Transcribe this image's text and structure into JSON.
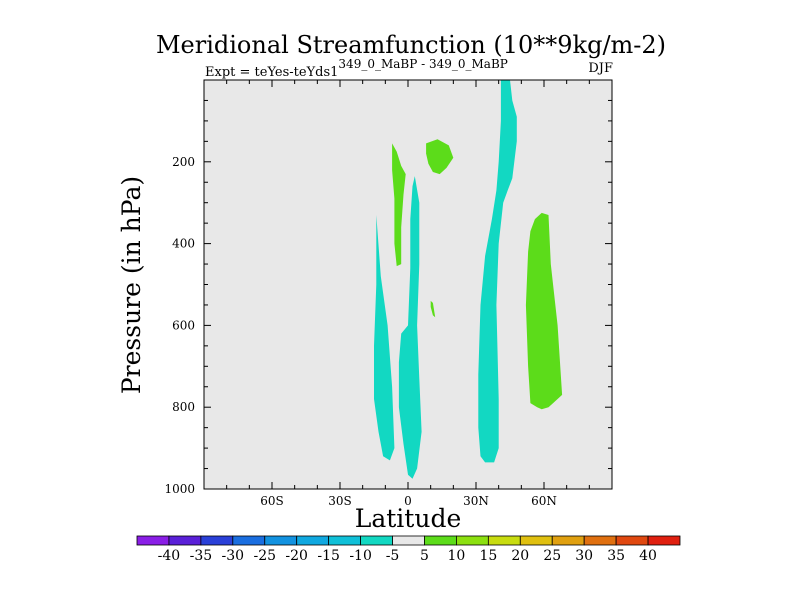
{
  "chart_data": {
    "type": "heatmap",
    "title": "Meridional Streamfunction (10**9kg/m-2)",
    "subtitle_left": "Expt = teYes-teYds1",
    "subtitle_left_superscript": "349_0_MaBP - 349_0_MaBP",
    "subtitle_right": "DJF",
    "xlabel": "Latitude",
    "ylabel": "Pressure (in hPa)",
    "xlim": [
      -90,
      90
    ],
    "ylim": [
      1000,
      0
    ],
    "xticks": [
      {
        "value": -60,
        "label": "60S"
      },
      {
        "value": -30,
        "label": "30S"
      },
      {
        "value": 0,
        "label": "0"
      },
      {
        "value": 30,
        "label": "30N"
      },
      {
        "value": 60,
        "label": "60N"
      }
    ],
    "yticks": [
      {
        "value": 200,
        "label": "200"
      },
      {
        "value": 400,
        "label": "400"
      },
      {
        "value": 600,
        "label": "600"
      },
      {
        "value": 800,
        "label": "800"
      },
      {
        "value": 1000,
        "label": "1000"
      }
    ],
    "background_color": "#e8e8e8",
    "colorbar": {
      "levels": [
        "-40",
        "-35",
        "-30",
        "-25",
        "-20",
        "-15",
        "-10",
        "-5",
        "5",
        "10",
        "15",
        "20",
        "25",
        "30",
        "35",
        "40"
      ],
      "colors": [
        "#8a1ee6",
        "#5a20d8",
        "#2a40d8",
        "#1a6ee0",
        "#1292e0",
        "#10a8e0",
        "#10c0d8",
        "#12d8c2",
        "#e8e8e8",
        "#5cdc1a",
        "#8ce010",
        "#c8dc10",
        "#e0c010",
        "#e0a010",
        "#e07010",
        "#e04810",
        "#e02010"
      ]
    },
    "regions": [
      {
        "name": "contour-sh-tropical-negative",
        "class": "-10 to -5",
        "color": "#12d8c2",
        "points": [
          [
            -14,
            330
          ],
          [
            -12,
            480
          ],
          [
            -9,
            600
          ],
          [
            -7,
            750
          ],
          [
            -6,
            900
          ],
          [
            -8,
            930
          ],
          [
            -11,
            920
          ],
          [
            -13,
            860
          ],
          [
            -15,
            780
          ],
          [
            -15,
            650
          ],
          [
            -14,
            500
          ]
        ]
      },
      {
        "name": "contour-equatorial-negative",
        "class": "-10 to -5",
        "color": "#12d8c2",
        "points": [
          [
            3,
            235
          ],
          [
            5,
            300
          ],
          [
            5,
            450
          ],
          [
            4,
            600
          ],
          [
            5,
            730
          ],
          [
            6,
            860
          ],
          [
            4,
            950
          ],
          [
            2,
            975
          ],
          [
            0,
            965
          ],
          [
            -2,
            890
          ],
          [
            -4,
            800
          ],
          [
            -4,
            690
          ],
          [
            -3,
            620
          ],
          [
            0,
            600
          ],
          [
            1,
            460
          ],
          [
            1,
            340
          ],
          [
            2,
            260
          ]
        ]
      },
      {
        "name": "contour-nh-mid-negative",
        "class": "-10 to -5",
        "color": "#12d8c2",
        "points": [
          [
            41,
            0
          ],
          [
            45,
            0
          ],
          [
            46,
            50
          ],
          [
            48,
            90
          ],
          [
            48,
            150
          ],
          [
            46,
            240
          ],
          [
            44,
            270
          ],
          [
            42,
            300
          ],
          [
            40,
            400
          ],
          [
            39,
            550
          ],
          [
            40,
            780
          ],
          [
            40,
            900
          ],
          [
            38,
            935
          ],
          [
            34,
            935
          ],
          [
            32,
            920
          ],
          [
            31,
            850
          ],
          [
            31,
            720
          ],
          [
            32,
            550
          ],
          [
            34,
            430
          ],
          [
            37,
            340
          ],
          [
            39,
            270
          ],
          [
            40,
            200
          ],
          [
            41,
            100
          ]
        ]
      },
      {
        "name": "contour-sh-upper-positive",
        "class": "5 to 10",
        "color": "#5cdc1a",
        "points": [
          [
            -7,
            155
          ],
          [
            -5,
            175
          ],
          [
            -3,
            210
          ],
          [
            -1,
            230
          ],
          [
            -2,
            280
          ],
          [
            -3,
            360
          ],
          [
            -3,
            450
          ],
          [
            -5,
            455
          ],
          [
            -6,
            400
          ],
          [
            -6,
            290
          ],
          [
            -7,
            220
          ]
        ]
      },
      {
        "name": "contour-nh-upper-positive",
        "class": "5 to 10",
        "color": "#5cdc1a",
        "points": [
          [
            8,
            155
          ],
          [
            13,
            145
          ],
          [
            18,
            160
          ],
          [
            20,
            190
          ],
          [
            17,
            215
          ],
          [
            14,
            230
          ],
          [
            11,
            225
          ],
          [
            9,
            205
          ],
          [
            8,
            180
          ]
        ]
      },
      {
        "name": "contour-small-positive",
        "class": "5 to 10",
        "color": "#5cdc1a",
        "points": [
          [
            10,
            540
          ],
          [
            11,
            545
          ],
          [
            12,
            580
          ],
          [
            11,
            575
          ],
          [
            10,
            555
          ]
        ]
      },
      {
        "name": "contour-nh-polar-positive",
        "class": "5 to 10",
        "color": "#5cdc1a",
        "points": [
          [
            56,
            340
          ],
          [
            59,
            325
          ],
          [
            62,
            330
          ],
          [
            63,
            450
          ],
          [
            66,
            600
          ],
          [
            68,
            770
          ],
          [
            64,
            790
          ],
          [
            62,
            800
          ],
          [
            59,
            805
          ],
          [
            57,
            800
          ],
          [
            54,
            790
          ],
          [
            53,
            700
          ],
          [
            52,
            550
          ],
          [
            53,
            420
          ],
          [
            54,
            370
          ]
        ]
      }
    ]
  }
}
